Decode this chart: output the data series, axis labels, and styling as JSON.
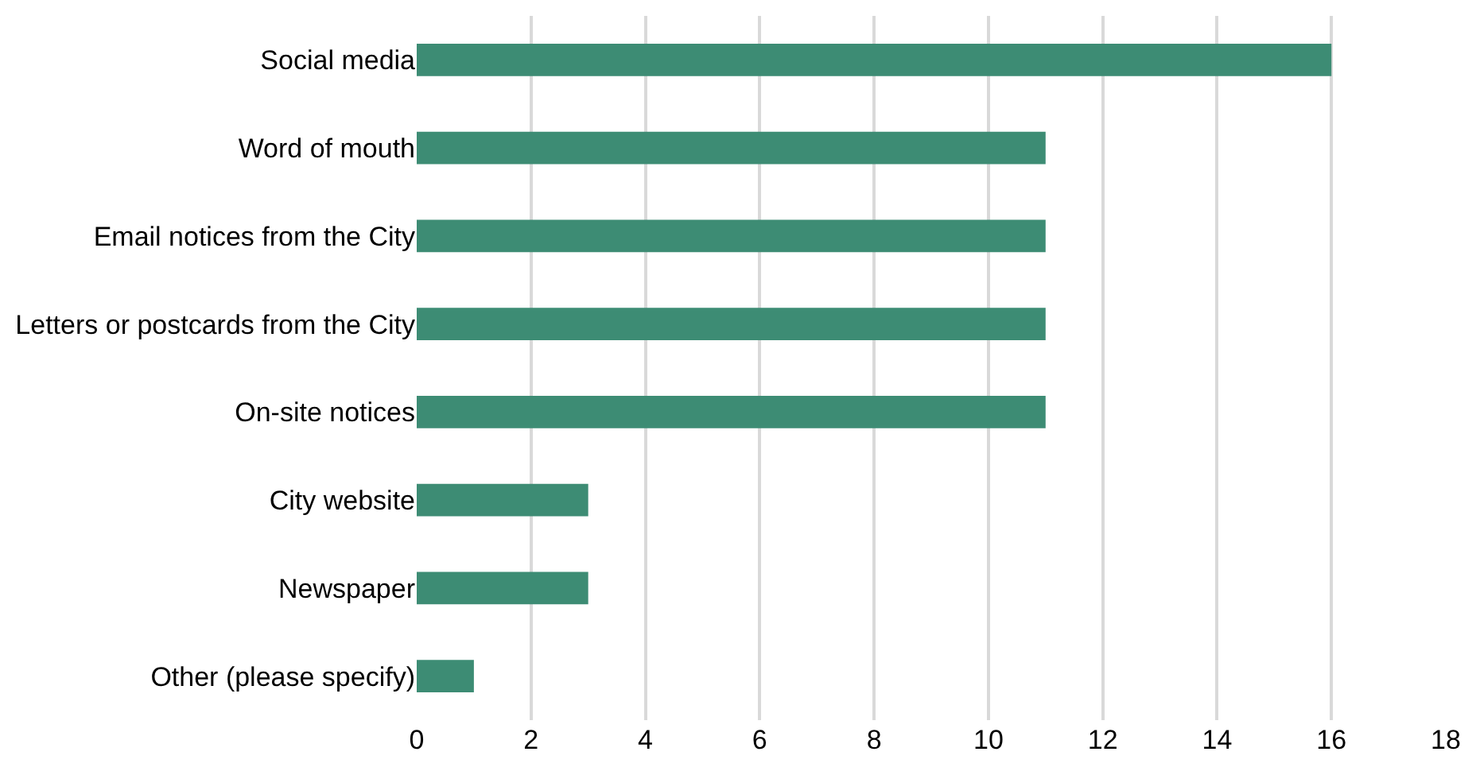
{
  "chart_data": {
    "type": "bar",
    "orientation": "horizontal",
    "categories": [
      "Social media",
      "Word of mouth",
      "Email notices from the City",
      "Letters or postcards from the City",
      "On-site notices",
      "City website",
      "Newspaper",
      "Other (please specify)"
    ],
    "values": [
      16,
      11,
      11,
      11,
      11,
      3,
      3,
      1
    ],
    "color": "#3d8c74",
    "xlim": [
      0,
      18
    ],
    "xticks": [
      0,
      2,
      4,
      6,
      8,
      10,
      12,
      14,
      16,
      18
    ],
    "grid": "x",
    "legend": false
  }
}
